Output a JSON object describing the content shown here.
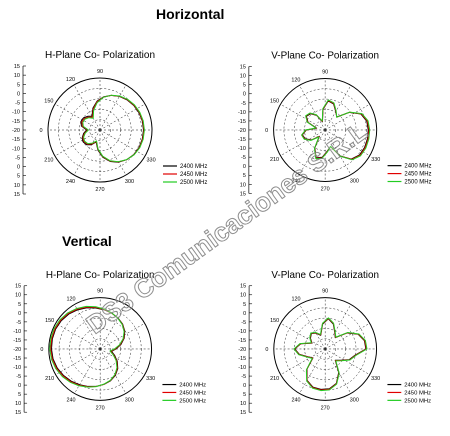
{
  "page": {
    "section_horizontal": "Horizontal",
    "section_vertical": "Vertical",
    "watermark": "DS3 Comunicaciones S.R.L"
  },
  "colors": {
    "series_2400": "#000000",
    "series_2450": "#e00000",
    "series_2500": "#22cc22",
    "grid": "#000000"
  },
  "chart_data": [
    {
      "id": "horizontal-h-plane",
      "type": "polar",
      "title": "H-Plane Co- Polarization",
      "r_ticks": [
        "15",
        "10",
        "5",
        "0",
        "-5",
        "-10",
        "-15",
        "-20",
        "-15",
        "-10",
        "-5",
        "0",
        "5",
        "10",
        "15"
      ],
      "angle_labels": [
        "90",
        "120",
        "150",
        "0",
        "210",
        "240",
        "270",
        "300",
        "330"
      ],
      "r_range": [
        -20,
        15
      ],
      "legend": [
        "2400 MHz",
        "2450 MHz",
        "2500 MHz"
      ],
      "legend_position": "bottom-right",
      "series": [
        {
          "name": "2400 MHz",
          "color": "#000000",
          "r": [
            9.3,
            9.1,
            8.7,
            8.1,
            7.3,
            6.1,
            4.5,
            2.4,
            -0.5,
            -4.5,
            -9.2,
            -7.6,
            -6.2,
            -5.9,
            -7.2,
            -11.0,
            -8.7,
            -6.8,
            -6.1,
            -6.6,
            -8.6,
            -11.5,
            -6.4,
            -1.5,
            2.3,
            5.0,
            6.9,
            8.1,
            8.8,
            9.1
          ]
        },
        {
          "name": "2450 MHz",
          "color": "#e00000",
          "r": [
            9.6,
            9.4,
            9.0,
            8.4,
            7.5,
            6.2,
            4.5,
            2.2,
            -1.0,
            -5.2,
            -10.0,
            -8.3,
            -6.9,
            -6.6,
            -7.9,
            -11.7,
            -9.3,
            -7.4,
            -6.7,
            -7.2,
            -9.2,
            -11.9,
            -6.9,
            -1.9,
            2.0,
            4.8,
            6.9,
            8.3,
            9.1,
            9.4
          ]
        },
        {
          "name": "2500 MHz",
          "color": "#22cc22",
          "r": [
            9.9,
            9.7,
            9.3,
            8.7,
            7.8,
            6.4,
            4.6,
            2.1,
            -1.5,
            -6.0,
            -10.8,
            -8.9,
            -7.5,
            -7.3,
            -8.5,
            -12.2,
            -9.8,
            -7.9,
            -7.2,
            -7.7,
            -9.8,
            -12.3,
            -7.3,
            -2.3,
            1.7,
            4.6,
            6.8,
            8.4,
            9.3,
            9.7
          ]
        }
      ]
    },
    {
      "id": "horizontal-v-plane",
      "type": "polar",
      "title": "V-Plane Co- Polarization",
      "r_ticks": [
        "15",
        "10",
        "5",
        "0",
        "-5",
        "-10",
        "-15",
        "-20",
        "-15",
        "-10",
        "-5",
        "0",
        "5",
        "10",
        "15"
      ],
      "angle_labels": [
        "90",
        "120",
        "150",
        "0",
        "210",
        "240",
        "270",
        "300",
        "330"
      ],
      "r_range": [
        -20,
        15
      ],
      "legend": [
        "2400 MHz",
        "2450 MHz",
        "2500 MHz"
      ],
      "legend_position": "bottom-right",
      "series": [
        {
          "name": "2400 MHz",
          "color": "#000000",
          "r": [
            9.3,
            8.9,
            6.6,
            0.4,
            -8.1,
            -5.6,
            -1.4,
            -0.2,
            -6.0,
            -14.2,
            -8.6,
            -5.2,
            -4.2,
            -7.3,
            -14.1,
            -7.3,
            -4.2,
            -5.2,
            -8.6,
            -14.2,
            -6.0,
            -0.2,
            -1.4,
            -5.6,
            -8.1,
            0.4,
            6.6,
            8.9,
            9.3,
            9.3
          ]
        },
        {
          "name": "2450 MHz",
          "color": "#e00000",
          "r": [
            9.8,
            9.3,
            6.9,
            0.5,
            -8.2,
            -5.3,
            -1.0,
            0.2,
            -5.7,
            -13.9,
            -8.3,
            -4.8,
            -3.9,
            -7.0,
            -13.8,
            -7.0,
            -3.9,
            -4.8,
            -8.3,
            -13.9,
            -5.7,
            0.2,
            -1.0,
            -5.3,
            -8.2,
            0.5,
            6.9,
            9.3,
            9.8,
            9.8
          ]
        },
        {
          "name": "2500 MHz",
          "color": "#22cc22",
          "r": [
            10.3,
            9.8,
            7.3,
            0.6,
            -8.3,
            -5.0,
            -0.7,
            0.5,
            -5.4,
            -13.6,
            -8.0,
            -4.5,
            -3.6,
            -6.7,
            -13.5,
            -6.7,
            -3.6,
            -4.5,
            -8.0,
            -13.6,
            -5.4,
            0.5,
            -0.7,
            -5.0,
            -8.3,
            0.6,
            7.3,
            9.8,
            10.3,
            10.3
          ]
        }
      ]
    },
    {
      "id": "vertical-h-plane",
      "type": "polar",
      "title": "H-Plane Co- Polarization",
      "r_ticks": [
        "15",
        "10",
        "5",
        "0",
        "-5",
        "-10",
        "-15",
        "-20",
        "-15",
        "-10",
        "-5",
        "0",
        "5",
        "10",
        "15"
      ],
      "angle_labels": [
        "90",
        "120",
        "150",
        "0",
        "210",
        "240",
        "270",
        "300",
        "330"
      ],
      "r_range": [
        -20,
        15
      ],
      "legend": [
        "2400 MHz",
        "2450 MHz",
        "2500 MHz"
      ],
      "legend_position": "bottom-right",
      "series": [
        {
          "name": "2400 MHz",
          "color": "#000000",
          "r": [
            -9.2,
            -5.6,
            -2.1,
            0.7,
            2.8,
            4.3,
            5.6,
            6.8,
            8.1,
            9.5,
            10.8,
            12.0,
            12.8,
            13.2,
            13.3,
            13.2,
            12.8,
            12.0,
            10.8,
            9.5,
            8.1,
            6.8,
            5.6,
            4.3,
            2.8,
            0.7,
            -2.1,
            -5.6,
            -9.2,
            -12.1
          ]
        },
        {
          "name": "2450 MHz",
          "color": "#e00000",
          "r": [
            -9.8,
            -6.1,
            -2.5,
            0.4,
            2.6,
            4.2,
            5.7,
            7.0,
            8.5,
            10.0,
            11.3,
            12.5,
            13.3,
            13.7,
            13.8,
            13.7,
            13.3,
            12.5,
            11.3,
            10.0,
            8.5,
            7.0,
            5.7,
            4.2,
            2.6,
            0.4,
            -2.5,
            -6.1,
            -9.8,
            -12.7
          ]
        },
        {
          "name": "2500 MHz",
          "color": "#22cc22",
          "r": [
            -10.3,
            -6.6,
            -2.9,
            0.1,
            2.4,
            4.1,
            5.8,
            7.3,
            8.9,
            10.5,
            11.9,
            13.1,
            13.9,
            14.3,
            14.4,
            14.3,
            13.9,
            13.1,
            11.9,
            10.5,
            8.9,
            7.3,
            5.8,
            4.1,
            2.4,
            0.1,
            -2.9,
            -6.6,
            -10.3,
            -13.2
          ]
        }
      ]
    },
    {
      "id": "vertical-v-plane",
      "type": "polar",
      "title": "V-Plane Co- Polarization",
      "r_ticks": [
        "15",
        "10",
        "5",
        "0",
        "-5",
        "-10",
        "-15",
        "-20",
        "-15",
        "-10",
        "-5",
        "0",
        "5",
        "10",
        "15"
      ],
      "angle_labels": [
        "90",
        "120",
        "150",
        "0",
        "210",
        "240",
        "270",
        "300",
        "330"
      ],
      "r_range": [
        -20,
        15
      ],
      "legend": [
        "2400 MHz",
        "2450 MHz",
        "2500 MHz"
      ],
      "legend_position": "bottom-right",
      "series": [
        {
          "name": "2400 MHz",
          "color": "#000000",
          "r": [
            7.7,
            7.3,
            4.6,
            -1.5,
            -9.7,
            -7.0,
            -2.1,
            0.7,
            -3.0,
            -10.2,
            -7.6,
            -5.9,
            -7.6,
            -10.2,
            -3.0,
            0.7,
            -2.1,
            -7.0,
            -9.7,
            -1.5,
            4.6,
            7.3,
            7.7,
            7.3,
            4.6,
            -1.5,
            -9.7,
            -7.0,
            -2.1,
            0.7
          ]
        },
        {
          "name": "2450 MHz",
          "color": "#e00000",
          "r": [
            8.1,
            7.6,
            4.9,
            -1.2,
            -9.4,
            -6.7,
            -1.8,
            1.0,
            -2.7,
            -9.9,
            -7.3,
            -5.6,
            -7.3,
            -9.9,
            -2.7,
            1.0,
            -1.8,
            -6.7,
            -9.4,
            -1.2,
            4.9,
            7.6,
            8.1,
            7.6,
            4.9,
            -1.2,
            -9.4,
            -6.7,
            -1.8,
            1.0
          ]
        },
        {
          "name": "2500 MHz",
          "color": "#22cc22",
          "r": [
            8.5,
            8.0,
            5.2,
            -0.9,
            -9.1,
            -6.4,
            -1.5,
            1.3,
            -2.4,
            -9.6,
            -7.0,
            -5.3,
            -7.0,
            -9.6,
            -2.4,
            1.3,
            -1.5,
            -6.4,
            -9.1,
            -0.9,
            5.2,
            8.0,
            8.5,
            8.0,
            5.2,
            -0.9,
            -9.1,
            -6.4,
            -1.5,
            1.3
          ]
        }
      ]
    }
  ]
}
